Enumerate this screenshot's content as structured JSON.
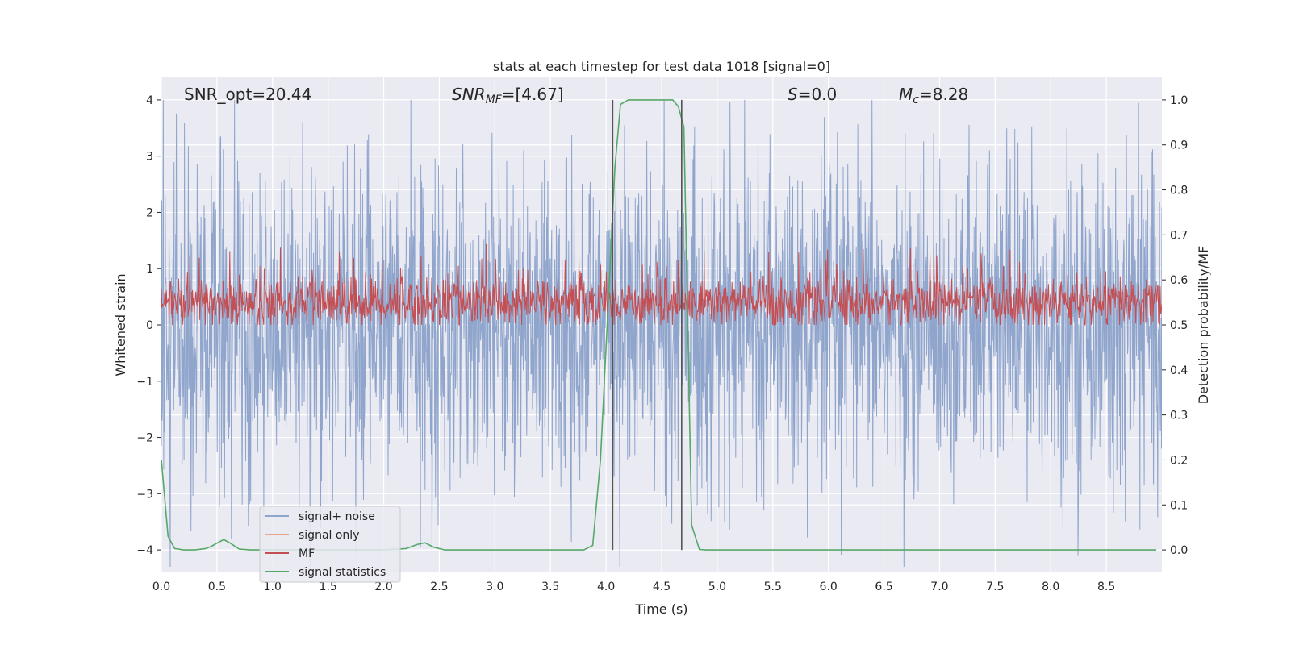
{
  "chart_data": {
    "type": "line",
    "title": "stats at each timestep for test data 1018 [signal=0]",
    "xlabel": "Time (s)",
    "ylabel_left": "Whitened strain",
    "ylabel_right": "Detection probability/MF",
    "xlim": [
      0,
      9
    ],
    "ylim_left": [
      -4.4,
      4.4
    ],
    "ylim_right": [
      -0.05,
      1.05
    ],
    "xticks": [
      "0.0",
      "0.5",
      "1.0",
      "1.5",
      "2.0",
      "2.5",
      "3.0",
      "3.5",
      "4.0",
      "4.5",
      "5.0",
      "5.5",
      "6.0",
      "6.5",
      "7.0",
      "7.5",
      "8.0",
      "8.5"
    ],
    "yticks_left": [
      "−4",
      "−3",
      "−2",
      "−1",
      "0",
      "1",
      "2",
      "3",
      "4"
    ],
    "yticks_right": [
      "0.0",
      "0.1",
      "0.2",
      "0.3",
      "0.4",
      "0.5",
      "0.6",
      "0.7",
      "0.8",
      "0.9",
      "1.0"
    ],
    "grid": true,
    "legend_position": "lower-left",
    "annotations": {
      "snr_opt": "SNR_opt=20.44",
      "snr_mf_base": "SNR",
      "snr_mf_sub": "MF",
      "snr_mf_rest": "=[4.67]",
      "s_base": "S",
      "s_rest": "=0.0",
      "mc_base": "M",
      "mc_sub": "c",
      "mc_rest": "=8.28"
    },
    "vertical_lines_x": [
      4.06,
      4.68
    ],
    "colors": {
      "signal_noise": "#8fa5cc",
      "signal_only": "#e8a38a",
      "mf": "#c44e52",
      "signal_statistics": "#55a868",
      "background": "#eaeaf2",
      "grid": "#ffffff",
      "vline": "#555555"
    },
    "series": [
      {
        "name": "signal+ noise",
        "style": "dense noise, amplitude roughly ±1.6 with spikes to ±4",
        "envelope": 1.6,
        "peak": 4.0
      },
      {
        "name": "signal only",
        "values": []
      },
      {
        "name": "MF",
        "axis": "right",
        "style": "noisy band around 0.55 on right axis",
        "mean": 0.55,
        "spread": 0.05
      },
      {
        "name": "signal statistics",
        "axis": "right",
        "x": [
          0.0,
          0.06,
          0.12,
          0.2,
          0.3,
          0.4,
          0.45,
          0.5,
          0.56,
          0.62,
          0.7,
          0.8,
          1.0,
          1.5,
          2.0,
          2.2,
          2.3,
          2.37,
          2.45,
          2.55,
          2.7,
          3.0,
          3.5,
          3.8,
          3.88,
          3.95,
          4.02,
          4.08,
          4.13,
          4.2,
          4.4,
          4.6,
          4.65,
          4.7,
          4.77,
          4.84,
          4.9,
          5.5,
          6.0,
          7.0,
          8.0,
          8.5,
          8.95
        ],
        "values": [
          0.2,
          0.03,
          0.003,
          0.0,
          0.0,
          0.003,
          0.008,
          0.015,
          0.023,
          0.015,
          0.002,
          0.0,
          0.0,
          0.0,
          0.0,
          0.003,
          0.012,
          0.016,
          0.006,
          0.0,
          0.0,
          0.0,
          0.0,
          0.0,
          0.01,
          0.2,
          0.55,
          0.85,
          0.99,
          1.0,
          1.0,
          1.0,
          0.985,
          0.94,
          0.055,
          0.001,
          0.0,
          0.0,
          0.0,
          0.0,
          0.0,
          0.0,
          0.0
        ]
      }
    ]
  }
}
